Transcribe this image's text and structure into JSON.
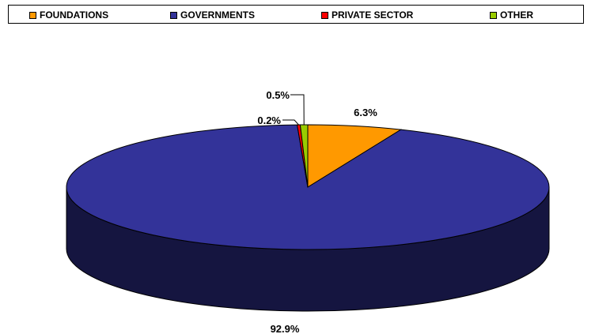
{
  "chart_data": {
    "type": "pie",
    "style": "3d",
    "legend_position": "top",
    "series": [
      {
        "name": "FOUNDATIONS",
        "value": 6.3,
        "label": "6.3%",
        "color": "#FF9900"
      },
      {
        "name": "GOVERNMENTS",
        "value": 92.9,
        "label": "92.9%",
        "color": "#333399"
      },
      {
        "name": "PRIVATE SECTOR",
        "value": 0.2,
        "label": "0.2%",
        "color": "#FF0000"
      },
      {
        "name": "OTHER",
        "value": 0.5,
        "label": "0.5%",
        "color": "#99CC00"
      }
    ]
  }
}
